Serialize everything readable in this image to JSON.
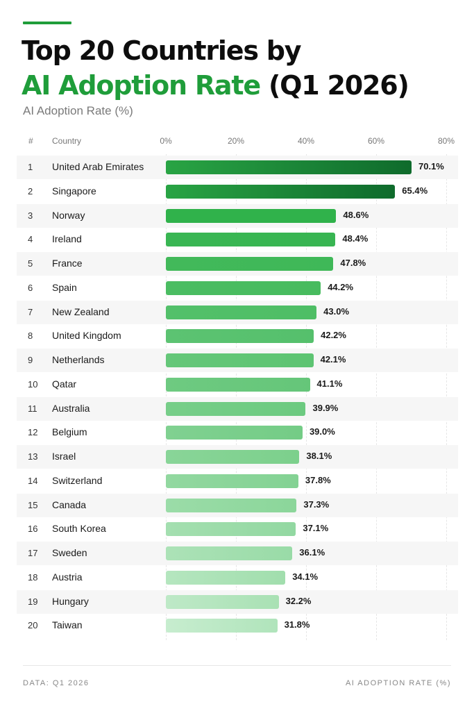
{
  "title": {
    "line1": "Top 20 Countries by",
    "line2_highlight": "AI Adoption Rate",
    "line2_rest": " (Q1 2026)"
  },
  "subtitle": "AI Adoption Rate (%)",
  "header": {
    "rank": "#",
    "country": "Country"
  },
  "footer": {
    "left": "DATA: Q1 2026",
    "right": "AI ADOPTION RATE (%)"
  },
  "colors": {
    "accent": "#1f9d3a",
    "bar_dark": "#1a6e30",
    "bar_light": "#d8f3dc"
  },
  "chart_data": {
    "type": "bar",
    "orientation": "horizontal",
    "title": "Top 20 Countries by AI Adoption Rate (Q1 2026)",
    "xlabel": "AI Adoption Rate (%)",
    "xlim": [
      0,
      80
    ],
    "ticks": [
      "0%",
      "20%",
      "40%",
      "60%",
      "80%"
    ],
    "grid": true,
    "ranks": [
      "1",
      "2",
      "3",
      "4",
      "5",
      "6",
      "7",
      "8",
      "9",
      "10",
      "11",
      "12",
      "13",
      "14",
      "15",
      "16",
      "17",
      "18",
      "19",
      "20"
    ],
    "categories": [
      "United Arab Emirates",
      "Singapore",
      "Norway",
      "Ireland",
      "France",
      "Spain",
      "New Zealand",
      "United Kingdom",
      "Netherlands",
      "Qatar",
      "Australia",
      "Belgium",
      "Israel",
      "Switzerland",
      "Canada",
      "South Korea",
      "Sweden",
      "Austria",
      "Hungary",
      "Taiwan"
    ],
    "values": [
      70.1,
      65.4,
      48.6,
      48.4,
      47.8,
      44.2,
      43.0,
      42.2,
      42.1,
      41.1,
      39.9,
      39.0,
      38.1,
      37.8,
      37.3,
      37.1,
      36.1,
      34.1,
      32.2,
      31.8
    ],
    "value_labels": [
      "70.1%",
      "65.4%",
      "48.6%",
      "48.4%",
      "47.8%",
      "44.2%",
      "43.0%",
      "42.2%",
      "42.1%",
      "41.1%",
      "39.9%",
      "39.0%",
      "38.1%",
      "37.8%",
      "37.3%",
      "37.1%",
      "36.1%",
      "34.1%",
      "32.2%",
      "31.8%"
    ]
  }
}
